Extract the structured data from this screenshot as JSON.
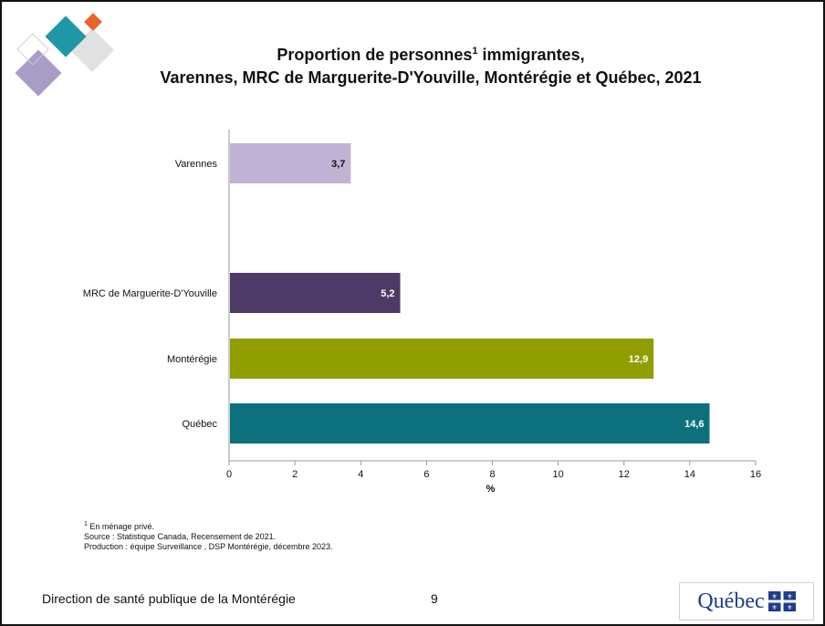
{
  "slide": {
    "title_line1_pre": "Proportion de personnes",
    "title_sup": "1",
    "title_line1_post": " immigrantes,",
    "title_line2": "Varennes, MRC de Marguerite-D'Youville, Montérégie et Québec, 2021",
    "footnotes": {
      "sup": "1",
      "note": " En ménage privé.",
      "source": "Source : Statistique Canada, Recensement de 2021.",
      "production": "Production : équipe Surveillance , DSP Montérégie, décembre 2023."
    },
    "footer": "Direction de santé publique de la Montérégie",
    "page_number": "9",
    "logo_text": "Québec"
  },
  "colors": {
    "varennes": "#c0b3d6",
    "mrc": "#4e3a66",
    "monteregie": "#919e00",
    "quebec": "#0c717d",
    "deco_teal": "#1e98a6",
    "deco_orange": "#e7652b",
    "deco_purple": "#a99cc6",
    "deco_grey": "#e1e1e1",
    "logo_blue": "#1f3d8a"
  },
  "chart_data": {
    "type": "bar",
    "orientation": "horizontal",
    "categories": [
      "Varennes",
      "MRC de Marguerite-D'Youville",
      "Montérégie",
      "Québec"
    ],
    "values": [
      3.7,
      5.2,
      12.9,
      14.6
    ],
    "value_labels": [
      "3,7",
      "5,2",
      "12,9",
      "14,6"
    ],
    "xlabel": "%",
    "ylabel": "",
    "xlim": [
      0,
      16
    ],
    "xticks": [
      "0",
      "2",
      "4",
      "6",
      "8",
      "10",
      "12",
      "14",
      "16"
    ],
    "grid": false,
    "legend": "none"
  }
}
